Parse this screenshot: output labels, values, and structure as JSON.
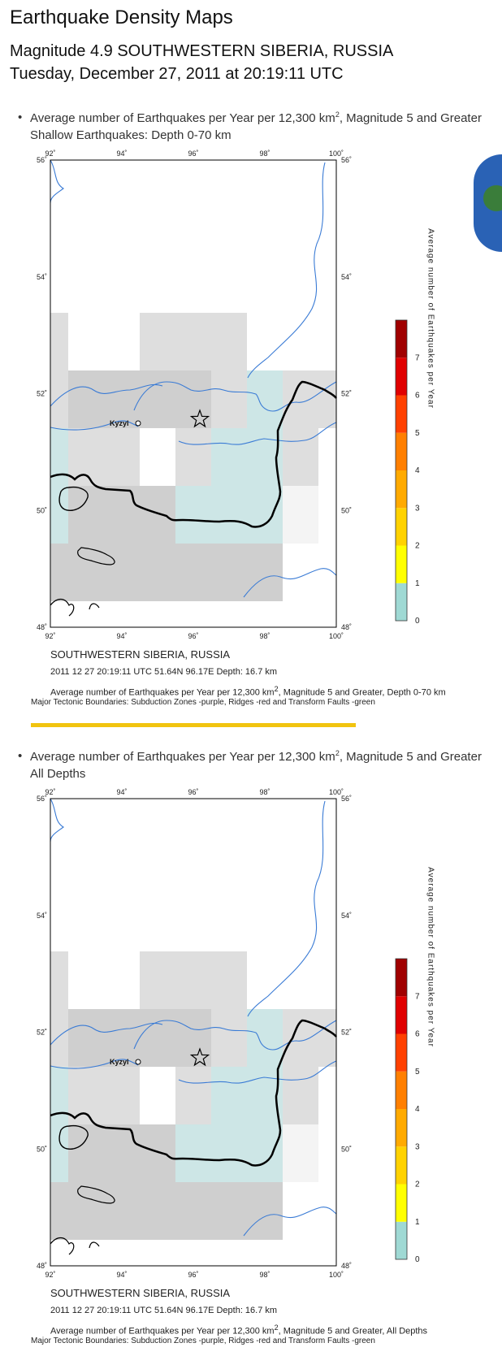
{
  "page": {
    "title": "Earthquake Density Maps",
    "event_line": "Magnitude 4.9 SOUTHWESTERN SIBERIA, RUSSIA",
    "date_line": "Tuesday, December 27, 2011 at 20:19:11 UTC"
  },
  "maps": [
    {
      "heading": "Average number of Earthquakes per Year per 12,300 km",
      "heading_sup": "2",
      "heading_tail": ", Magnitude 5 and Greater",
      "subheading": "Shallow Earthquakes: Depth 0-70 km",
      "region": "SOUTHWESTERN SIBERIA, RUSSIA",
      "event_info": "2011 12 27 20:19:11 UTC 51.64N 96.17E Depth: 16.7 km",
      "caption": "Average number of Earthquakes per Year per 12,300 km",
      "caption_sup": "2",
      "caption_tail": ", Magnitude 5 and Greater, Depth 0-70 km",
      "boundaries": "Major Tectonic Boundaries: Subduction Zones -purple, Ridges -red and Transform Faults -green"
    },
    {
      "heading": "Average number of Earthquakes per Year per 12,300 km",
      "heading_sup": "2",
      "heading_tail": ", Magnitude 5 and Greater",
      "subheading": "All Depths",
      "region": "SOUTHWESTERN SIBERIA, RUSSIA",
      "event_info": "2011 12 27 20:19:11 UTC 51.64N 96.17E Depth: 16.7 km",
      "caption": "Average number of Earthquakes per Year per 12,300 km",
      "caption_sup": "2",
      "caption_tail": ", Magnitude 5 and Greater, All Depths",
      "boundaries": "Major Tectonic Boundaries: Subduction Zones -purple, Ridges -red and Transform Faults -green"
    }
  ],
  "map_axes": {
    "lon_labels": [
      "92˚",
      "94˚",
      "96˚",
      "98˚",
      "100˚"
    ],
    "lat_labels": [
      "56˚",
      "54˚",
      "52˚",
      "50˚",
      "48˚"
    ],
    "city": "Kyzyl"
  },
  "legend": {
    "title": "Average number of Earthquakes per Year",
    "ticks": [
      "0",
      "1",
      "2",
      "3",
      "4",
      "5",
      "6",
      "7"
    ],
    "colors": [
      "#9fd9d4",
      "#ffff00",
      "#ffd200",
      "#ffaa00",
      "#ff7f00",
      "#ff4000",
      "#e00000",
      "#a00000"
    ]
  },
  "colors": {
    "river": "#3a7bd5",
    "border": "#000000",
    "cell_gray": "#cfcfcf",
    "cell_light": "#dedede",
    "cell_cyan": "#cde6e6",
    "divider": "#f1c40f"
  }
}
